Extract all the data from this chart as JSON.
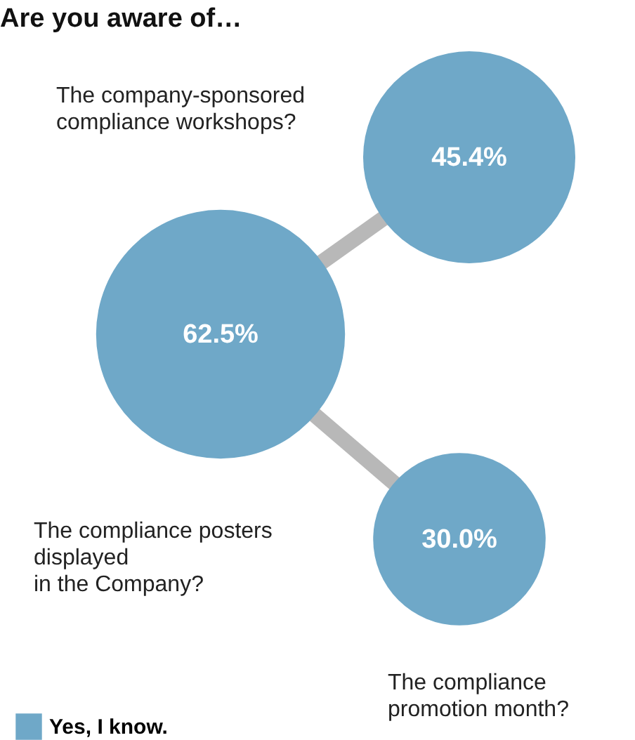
{
  "chart_data": {
    "type": "other",
    "title": "Are you aware of…",
    "categories": [
      "The company-sponsored\ncompliance workshops?",
      "The compliance posters\ndisplayed\nin the Company?",
      "The compliance\npromotion month?"
    ],
    "series": [
      {
        "name": "Yes, I know.",
        "color": "#6fa8c8",
        "values": [
          45.4,
          62.5,
          30.0
        ],
        "value_labels": [
          "45.4%",
          "62.5%",
          "30.0%"
        ]
      }
    ],
    "legend": "bottom left"
  }
}
